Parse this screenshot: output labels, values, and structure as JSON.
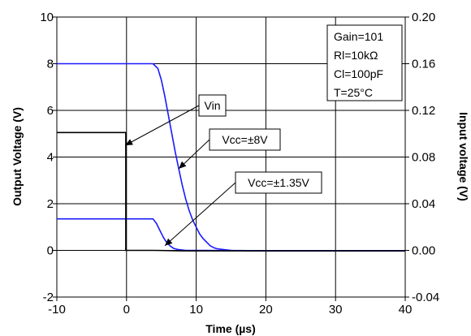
{
  "chart_data": {
    "type": "line",
    "xlabel": "Time (µs)",
    "ylabel_left": "Output Voltage (V)",
    "ylabel_right": "Input voltage (V)",
    "xlim": [
      -10,
      40
    ],
    "ylim_left": [
      -2,
      10
    ],
    "ylim_right": [
      -0.04,
      0.2
    ],
    "x_ticks": [
      "-10",
      "0",
      "10",
      "20",
      "30",
      "40"
    ],
    "y_ticks_left": [
      "-2",
      "0",
      "2",
      "4",
      "6",
      "8",
      "10"
    ],
    "y_ticks_right": [
      "-0.04",
      "0.00",
      "0.04",
      "0.08",
      "0.12",
      "0.16",
      "0.20"
    ],
    "grid": true,
    "info_box": [
      "Gain=101",
      "Rl=10kΩ",
      "Cl=100pF",
      "T=25°C"
    ],
    "annotations": [
      {
        "label": "Vin",
        "arrow_to": [
          -0.2,
          4.5
        ]
      },
      {
        "label": "Vcc=±8V",
        "arrow_to": [
          7.5,
          3.5
        ]
      },
      {
        "label": "Vcc=±1.35V",
        "arrow_to": [
          5.5,
          0.2
        ]
      }
    ],
    "series": [
      {
        "name": "Vcc=±8V",
        "color": "#1a1aff",
        "x": [
          -10,
          3.8,
          4.5,
          5,
          5.5,
          6,
          6.5,
          7,
          7.5,
          8,
          8.5,
          9,
          9.5,
          10,
          10.5,
          11,
          11.5,
          12,
          12.5,
          13,
          14,
          15,
          20,
          30,
          40
        ],
        "y": [
          8.0,
          8.0,
          7.8,
          7.3,
          6.6,
          5.8,
          5.0,
          4.2,
          3.5,
          2.8,
          2.2,
          1.7,
          1.3,
          1.0,
          0.7,
          0.5,
          0.35,
          0.2,
          0.12,
          0.07,
          0.03,
          0.0,
          -0.02,
          -0.02,
          -0.02
        ]
      },
      {
        "name": "Vcc=±1.35V",
        "color": "#1a1aff",
        "x": [
          -10,
          3.8,
          4.3,
          4.8,
          5.3,
          5.8,
          6.3,
          6.8,
          7.5,
          8.5,
          10,
          20,
          40
        ],
        "y": [
          1.35,
          1.35,
          1.15,
          0.85,
          0.55,
          0.32,
          0.18,
          0.08,
          0.03,
          0.0,
          0.0,
          -0.02,
          -0.02
        ]
      },
      {
        "name": "Vin",
        "color": "#000000",
        "x": [
          -10,
          -0.1,
          -0.1,
          4,
          8,
          40
        ],
        "y": [
          5.05,
          5.05,
          0.0,
          0.0,
          -0.02,
          -0.02
        ]
      }
    ]
  }
}
